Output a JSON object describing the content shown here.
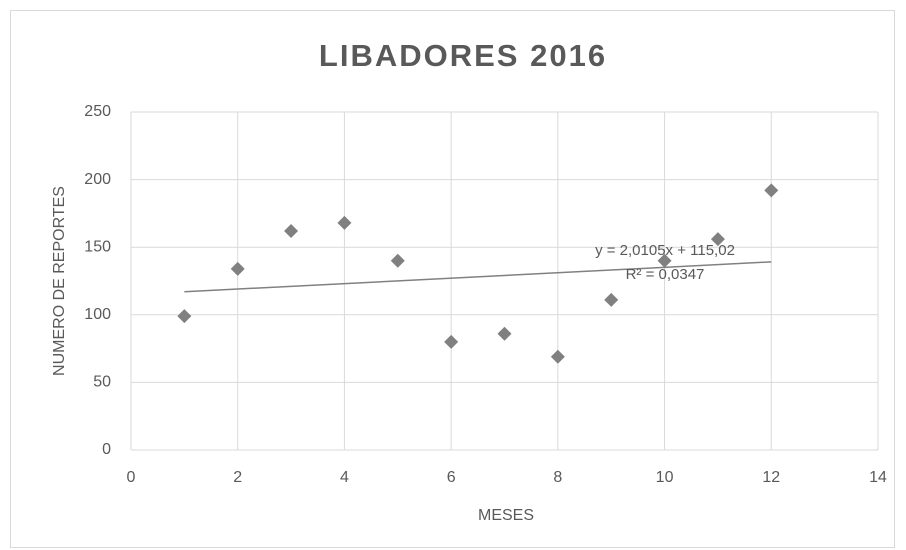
{
  "chart_data": {
    "type": "scatter",
    "title": "LIBADORES 2016",
    "x_label": "MESES",
    "y_label": "NUMERO DE REPORTES",
    "series": [
      {
        "name": "Libadores",
        "color": "#808080",
        "x": [
          1,
          2,
          3,
          4,
          5,
          6,
          7,
          8,
          9,
          10,
          11,
          12
        ],
        "values": [
          99,
          134,
          162,
          168,
          140,
          80,
          86,
          69,
          111,
          140,
          156,
          192
        ]
      }
    ],
    "trendline": {
      "slope": 2.0105,
      "intercept": 115.02,
      "color": "#808080",
      "equation": "y = 2,0105x + 115,02",
      "r2": "R² = 0,0347"
    },
    "xlim": [
      0,
      14
    ],
    "xticks": [
      0,
      2,
      4,
      6,
      8,
      10,
      12,
      14
    ],
    "ylim": [
      0,
      250
    ],
    "yticks": [
      0,
      50,
      100,
      150,
      200,
      250
    ],
    "grid": true
  }
}
